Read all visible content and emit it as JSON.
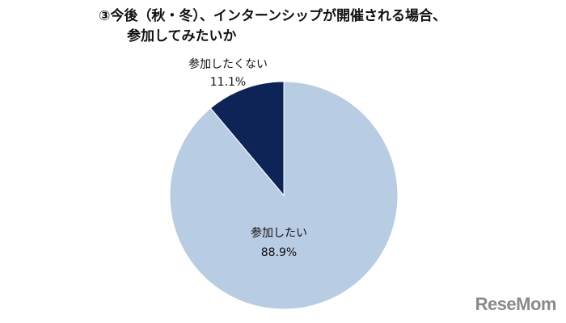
{
  "chart_data": {
    "type": "pie",
    "title_line1": "③今後（秋・冬）、インターンシップが開催される場合、",
    "title_line2": "参加してみたいか",
    "slices": [
      {
        "label": "参加したくない",
        "value": 11.1,
        "value_label": "11.1%",
        "color": "#0e2356"
      },
      {
        "label": "参加したい",
        "value": 88.9,
        "value_label": "88.9%",
        "color": "#b8cce4"
      }
    ],
    "start_angle": "12 o'clock",
    "direction": "counterclockwise"
  },
  "watermark": "ReseMom"
}
